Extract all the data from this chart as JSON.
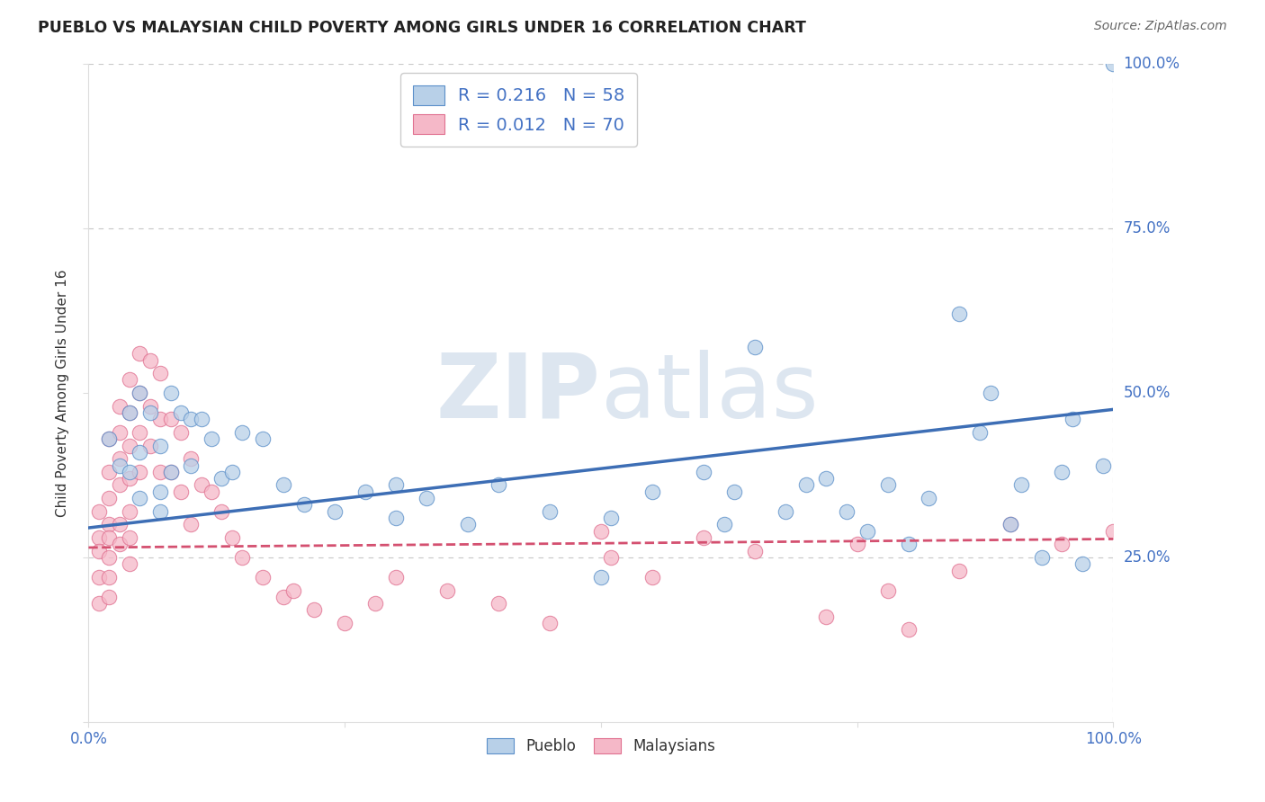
{
  "title": "PUEBLO VS MALAYSIAN CHILD POVERTY AMONG GIRLS UNDER 16 CORRELATION CHART",
  "source": "Source: ZipAtlas.com",
  "ylabel": "Child Poverty Among Girls Under 16",
  "pueblo_R": 0.216,
  "pueblo_N": 58,
  "malaysian_R": 0.012,
  "malaysian_N": 70,
  "pueblo_color": "#b8d0e8",
  "pueblo_edge_color": "#5b8fc9",
  "pueblo_line_color": "#3d6eb5",
  "malaysian_color": "#f5b8c8",
  "malaysian_edge_color": "#e07090",
  "malaysian_line_color": "#d45070",
  "watermark_color": "#dde6f0",
  "bg_color": "#ffffff",
  "grid_color": "#c8c8c8",
  "title_color": "#222222",
  "source_color": "#666666",
  "tick_color": "#4472c4",
  "xlim": [
    0,
    1
  ],
  "ylim": [
    0,
    1
  ],
  "pueblo_line_x0": 0.0,
  "pueblo_line_y0": 0.295,
  "pueblo_line_x1": 1.0,
  "pueblo_line_y1": 0.475,
  "malaysian_line_x0": 0.0,
  "malaysian_line_y0": 0.265,
  "malaysian_line_x1": 1.0,
  "malaysian_line_y1": 0.278,
  "pueblo_x": [
    0.02,
    0.03,
    0.04,
    0.04,
    0.05,
    0.05,
    0.05,
    0.06,
    0.07,
    0.07,
    0.07,
    0.08,
    0.08,
    0.09,
    0.1,
    0.1,
    0.11,
    0.12,
    0.13,
    0.14,
    0.15,
    0.17,
    0.19,
    0.21,
    0.24,
    0.27,
    0.3,
    0.3,
    0.33,
    0.37,
    0.4,
    0.45,
    0.5,
    0.51,
    0.55,
    0.6,
    0.62,
    0.63,
    0.65,
    0.68,
    0.7,
    0.72,
    0.74,
    0.76,
    0.78,
    0.8,
    0.82,
    0.85,
    0.87,
    0.88,
    0.9,
    0.91,
    0.93,
    0.95,
    0.96,
    0.97,
    0.99,
    1.0
  ],
  "pueblo_y": [
    0.43,
    0.39,
    0.47,
    0.38,
    0.5,
    0.41,
    0.34,
    0.47,
    0.42,
    0.35,
    0.32,
    0.5,
    0.38,
    0.47,
    0.46,
    0.39,
    0.46,
    0.43,
    0.37,
    0.38,
    0.44,
    0.43,
    0.36,
    0.33,
    0.32,
    0.35,
    0.31,
    0.36,
    0.34,
    0.3,
    0.36,
    0.32,
    0.22,
    0.31,
    0.35,
    0.38,
    0.3,
    0.35,
    0.57,
    0.32,
    0.36,
    0.37,
    0.32,
    0.29,
    0.36,
    0.27,
    0.34,
    0.62,
    0.44,
    0.5,
    0.3,
    0.36,
    0.25,
    0.38,
    0.46,
    0.24,
    0.39,
    1.0
  ],
  "malaysian_x": [
    0.01,
    0.01,
    0.01,
    0.01,
    0.01,
    0.02,
    0.02,
    0.02,
    0.02,
    0.02,
    0.02,
    0.02,
    0.02,
    0.03,
    0.03,
    0.03,
    0.03,
    0.03,
    0.03,
    0.04,
    0.04,
    0.04,
    0.04,
    0.04,
    0.04,
    0.04,
    0.05,
    0.05,
    0.05,
    0.05,
    0.06,
    0.06,
    0.06,
    0.07,
    0.07,
    0.07,
    0.08,
    0.08,
    0.09,
    0.09,
    0.1,
    0.1,
    0.11,
    0.12,
    0.13,
    0.14,
    0.15,
    0.17,
    0.19,
    0.2,
    0.22,
    0.25,
    0.28,
    0.3,
    0.35,
    0.4,
    0.45,
    0.5,
    0.51,
    0.55,
    0.6,
    0.65,
    0.72,
    0.75,
    0.78,
    0.8,
    0.85,
    0.9,
    0.95,
    1.0
  ],
  "malaysian_y": [
    0.32,
    0.28,
    0.26,
    0.22,
    0.18,
    0.43,
    0.38,
    0.34,
    0.3,
    0.28,
    0.25,
    0.22,
    0.19,
    0.48,
    0.44,
    0.4,
    0.36,
    0.3,
    0.27,
    0.52,
    0.47,
    0.42,
    0.37,
    0.32,
    0.28,
    0.24,
    0.56,
    0.5,
    0.44,
    0.38,
    0.55,
    0.48,
    0.42,
    0.53,
    0.46,
    0.38,
    0.46,
    0.38,
    0.44,
    0.35,
    0.4,
    0.3,
    0.36,
    0.35,
    0.32,
    0.28,
    0.25,
    0.22,
    0.19,
    0.2,
    0.17,
    0.15,
    0.18,
    0.22,
    0.2,
    0.18,
    0.15,
    0.29,
    0.25,
    0.22,
    0.28,
    0.26,
    0.16,
    0.27,
    0.2,
    0.14,
    0.23,
    0.3,
    0.27,
    0.29
  ]
}
